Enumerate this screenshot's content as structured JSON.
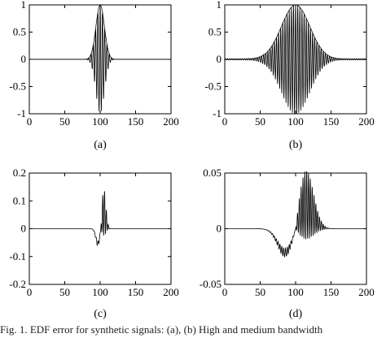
{
  "caption": "Fig. 1. EDF error for synthetic signals: (a), (b) High and medium bandwidth",
  "chart_data": [
    {
      "type": "line",
      "sublabel": "(a)",
      "xlim": [
        0,
        200
      ],
      "ylim": [
        -1,
        1
      ],
      "xticks": [
        "0",
        "50",
        "100",
        "150",
        "200"
      ],
      "yticks": [
        "-1",
        "-0.5",
        "0",
        "0.5",
        "1"
      ],
      "grid": false,
      "signal": {
        "center": 100,
        "width": 6,
        "period": 3.2,
        "amplitude": 1.0,
        "envelope_shown": true
      },
      "x": [
        0,
        80,
        88,
        92,
        95,
        97,
        99,
        100,
        101,
        103,
        105,
        108,
        112,
        120,
        200
      ],
      "y": [
        0,
        0,
        0.03,
        -0.12,
        0.32,
        -0.6,
        0.9,
        -1.0,
        0.95,
        -0.7,
        0.4,
        -0.15,
        0.04,
        0,
        0
      ]
    },
    {
      "type": "line",
      "sublabel": "(b)",
      "xlim": [
        0,
        200
      ],
      "ylim": [
        -1,
        1
      ],
      "xticks": [
        "0",
        "50",
        "100",
        "150",
        "200"
      ],
      "yticks": [
        "-1",
        "-0.5",
        "0",
        "0.5",
        "1"
      ],
      "grid": false,
      "signal": {
        "center": 100,
        "width": 20,
        "period": 3.0,
        "amplitude": 1.0,
        "envelope_shown": true
      },
      "x": [
        0,
        40,
        60,
        70,
        80,
        90,
        100,
        110,
        120,
        130,
        140,
        160,
        200
      ],
      "y": [
        0.01,
        0.02,
        0.15,
        0.3,
        0.62,
        0.9,
        1.0,
        0.9,
        0.62,
        0.3,
        0.1,
        0.02,
        0
      ]
    },
    {
      "type": "line",
      "sublabel": "(c)",
      "xlim": [
        0,
        200
      ],
      "ylim": [
        -0.2,
        0.2
      ],
      "xticks": [
        "0",
        "50",
        "100",
        "150",
        "200"
      ],
      "yticks": [
        "-0.2",
        "-0.1",
        "0",
        "0.1",
        "0.2"
      ],
      "grid": false,
      "signal": {
        "center": 101,
        "width": 5,
        "period": 2.6,
        "neg_amp": 0.1,
        "pos_amp": 0.11
      },
      "x": [
        0,
        85,
        90,
        95,
        98,
        100,
        103,
        106,
        110,
        115,
        200
      ],
      "y": [
        0,
        0,
        -0.03,
        -0.1,
        -0.07,
        0.02,
        0.11,
        0.08,
        0.03,
        0.005,
        0
      ]
    },
    {
      "type": "line",
      "sublabel": "(d)",
      "xlim": [
        0,
        200
      ],
      "ylim": [
        -0.05,
        0.05
      ],
      "xticks": [
        "0",
        "50",
        "100",
        "150",
        "200"
      ],
      "yticks": [
        "-0.05",
        "0",
        "0.05"
      ],
      "grid": false,
      "signal": {
        "center": 100,
        "width": 18,
        "period": 2.6,
        "neg_amp": 0.04,
        "pos_amp": 0.04
      },
      "x": [
        0,
        40,
        60,
        70,
        80,
        88,
        95,
        100,
        105,
        112,
        120,
        130,
        140,
        150,
        200
      ],
      "y": [
        0,
        0,
        -0.005,
        -0.015,
        -0.03,
        -0.04,
        -0.02,
        0.0,
        0.02,
        0.04,
        0.03,
        0.015,
        0.005,
        0,
        0
      ]
    }
  ]
}
